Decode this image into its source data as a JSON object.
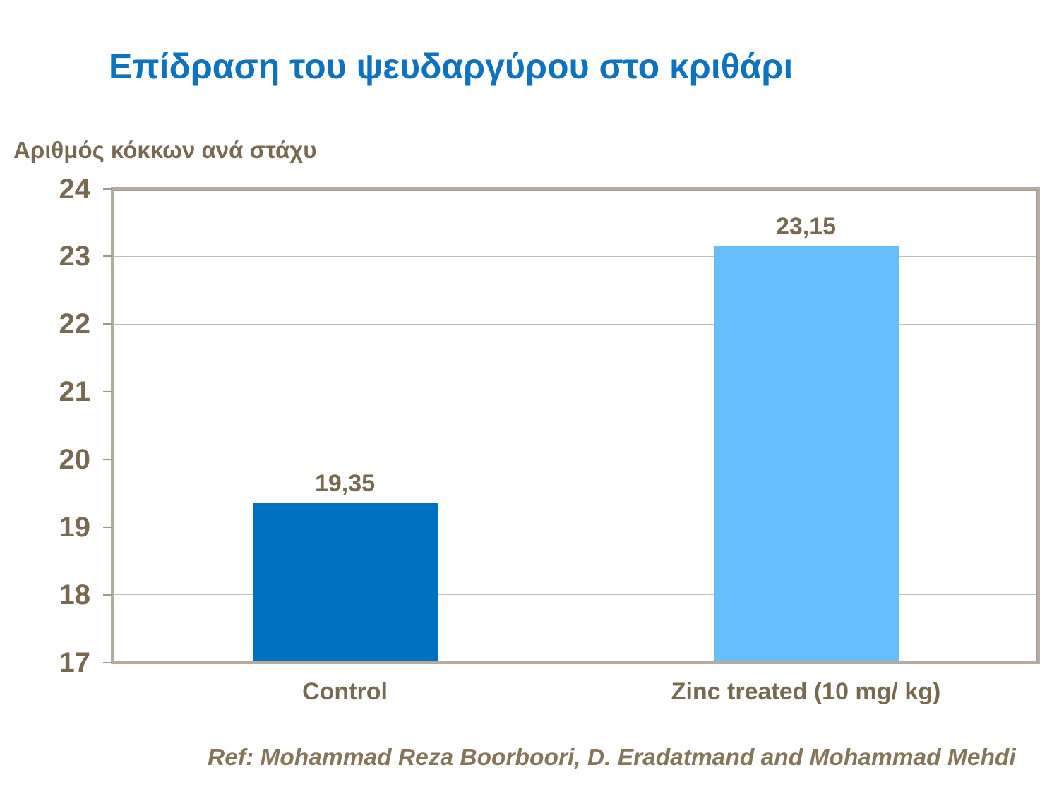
{
  "slide": {
    "title": "Επίδραση του ψευδαργύρου στο κριθάρι",
    "reference": "Ref: Mohammad Reza Boorboori, D. Eradatmand and Mohammad Mehdi"
  },
  "chart_data": {
    "type": "bar",
    "title": "",
    "xlabel": "",
    "ylabel": "Αριθμός κόκκων ανά στάχυ",
    "categories": [
      "Control",
      "Zinc treated (10 mg/ kg)"
    ],
    "values": [
      19.35,
      23.15
    ],
    "value_labels": [
      "19,35",
      "23,15"
    ],
    "ylim": [
      17,
      24
    ],
    "ytick_interval": 1,
    "ytick_labels": [
      "17",
      "18",
      "19",
      "20",
      "21",
      "22",
      "23",
      "24"
    ],
    "grid": true,
    "legend": "none"
  },
  "colors": {
    "title_text": "#0e72bf",
    "axis_text": "#786951",
    "reference_text": "#867659",
    "plot_border": "#b5ab9e",
    "plot_border_inner": "#9a9083",
    "gridline": "#c6beb2",
    "tick_mark": "#a2988a",
    "bar_colors": [
      "#0070c0",
      "#68befb"
    ],
    "background": "#ffffff"
  }
}
